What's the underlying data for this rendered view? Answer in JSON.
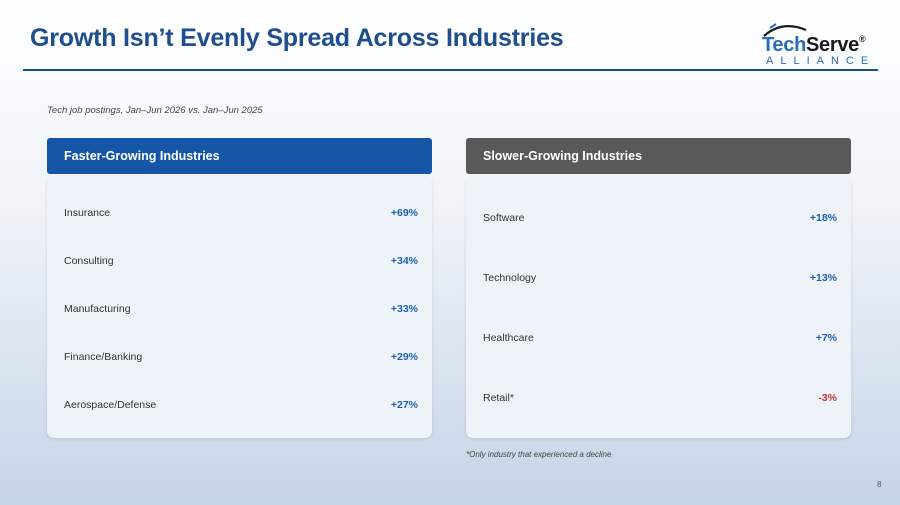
{
  "title": "Growth Isn’t Evenly Spread Across Industries",
  "logo": {
    "name_part1": "Tech",
    "name_part2": "Serve",
    "mark": "®",
    "sub": "ALLIANCE"
  },
  "subtitle": "Tech job postings, Jan–Jun 2026 vs. Jan–Jun 2025",
  "faster": {
    "header": "Faster-Growing Industries",
    "items": [
      {
        "label": "Insurance",
        "value": "+69%"
      },
      {
        "label": "Consulting",
        "value": "+34%"
      },
      {
        "label": "Manufacturing",
        "value": "+33%"
      },
      {
        "label": "Finance/Banking",
        "value": "+29%"
      },
      {
        "label": "Aerospace/Defense",
        "value": "+27%"
      }
    ]
  },
  "slower": {
    "header": "Slower-Growing Industries",
    "items": [
      {
        "label": "Software",
        "value": "+18%"
      },
      {
        "label": "Technology",
        "value": "+13%"
      },
      {
        "label": "Healthcare",
        "value": "+7%"
      },
      {
        "label": "Retail*",
        "value": "-3%"
      }
    ]
  },
  "footnote": "*Only industry that experienced a decline",
  "page_number": "8",
  "colors": {
    "title": "#1f4e8c",
    "faster_header": "#1557a6",
    "slower_header": "#595959",
    "positive": "#1f5fae",
    "negative": "#c0392b"
  }
}
